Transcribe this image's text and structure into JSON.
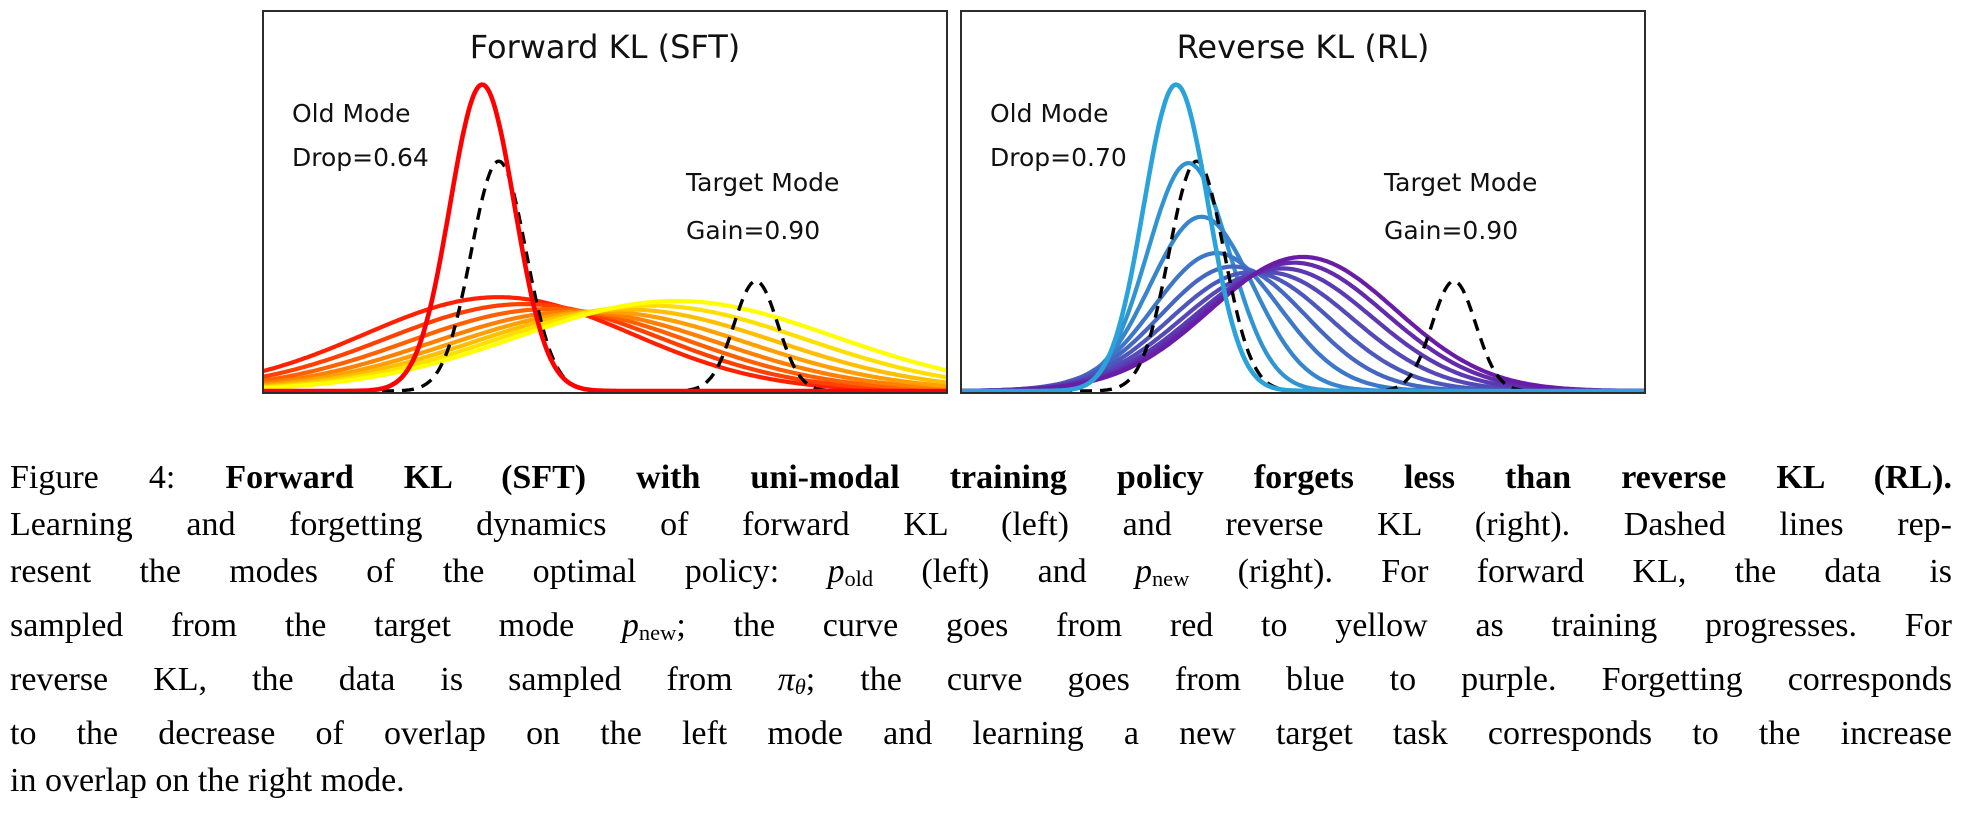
{
  "plots": [
    {
      "title": "Forward KL (SFT)",
      "old_mode_label": "Old Mode",
      "drop_label": "Drop=0.64",
      "target_mode_label": "Target Mode",
      "gain_label": "Gain=0.90"
    },
    {
      "title": "Reverse KL (RL)",
      "old_mode_label": "Old Mode",
      "drop_label": "Drop=0.70",
      "target_mode_label": "Target Mode",
      "gain_label": "Gain=0.90"
    }
  ],
  "chart_data": [
    {
      "type": "line",
      "title": "Forward KL (SFT)",
      "x_range": [
        0,
        1
      ],
      "y_range": [
        0,
        1
      ],
      "axes_visible": false,
      "grid": false,
      "legend": "none",
      "annotations": [
        "Old Mode Drop=0.64",
        "Target Mode Gain=0.90"
      ],
      "dashed_reference": {
        "label": "modes of optimal policy: p_old (left bump), p_new (right bump)",
        "line_style": "dashed black",
        "components": [
          {
            "mu": 0.345,
            "sigma": 0.04,
            "height": 0.6
          },
          {
            "mu": 0.72,
            "sigma": 0.032,
            "height": 0.287
          }
        ]
      },
      "series_note": "policy density over SFT training, early (red) to late (yellow); gaussian bumps in axis fractions",
      "series": [
        {
          "name": "step 0 (initial)",
          "color": "#FF0000",
          "mu": 0.321,
          "sigma": 0.047,
          "height": 0.8
        },
        {
          "name": "step 1",
          "color": "#FF2000",
          "mu": 0.345,
          "sigma": 0.195,
          "height": 0.245
        },
        {
          "name": "step 2",
          "color": "#FF4000",
          "mu": 0.382,
          "sigma": 0.2,
          "height": 0.227
        },
        {
          "name": "step 3",
          "color": "#FF6000",
          "mu": 0.419,
          "sigma": 0.205,
          "height": 0.214
        },
        {
          "name": "step 4",
          "color": "#FF8000",
          "mu": 0.456,
          "sigma": 0.21,
          "height": 0.207
        },
        {
          "name": "step 5",
          "color": "#FF9F00",
          "mu": 0.493,
          "sigma": 0.215,
          "height": 0.207
        },
        {
          "name": "step 6",
          "color": "#FFBF00",
          "mu": 0.53,
          "sigma": 0.22,
          "height": 0.213
        },
        {
          "name": "step 7",
          "color": "#FFDF00",
          "mu": 0.567,
          "sigma": 0.225,
          "height": 0.223
        },
        {
          "name": "step 8 (final)",
          "color": "#FFFF00",
          "mu": 0.604,
          "sigma": 0.23,
          "height": 0.235
        }
      ]
    },
    {
      "type": "line",
      "title": "Reverse KL (RL)",
      "x_range": [
        0,
        1
      ],
      "y_range": [
        0,
        1
      ],
      "axes_visible": false,
      "grid": false,
      "legend": "none",
      "annotations": [
        "Old Mode Drop=0.70",
        "Target Mode Gain=0.90"
      ],
      "dashed_reference": {
        "label": "modes of optimal policy: p_old (left bump), p_new (right bump)",
        "line_style": "dashed black",
        "components": [
          {
            "mu": 0.345,
            "sigma": 0.04,
            "height": 0.6
          },
          {
            "mu": 0.72,
            "sigma": 0.032,
            "height": 0.287
          }
        ]
      },
      "series_note": "policy density over RL training, early (blue) to late (purple); gaussian bumps in axis fractions",
      "series": [
        {
          "name": "step 0 (initial)",
          "color": "#29A3D9",
          "mu": 0.315,
          "sigma": 0.047,
          "height": 0.8
        },
        {
          "name": "step 1",
          "color": "#3094D3",
          "mu": 0.333,
          "sigma": 0.06,
          "height": 0.595
        },
        {
          "name": "step 2",
          "color": "#3785CD",
          "mu": 0.352,
          "sigma": 0.075,
          "height": 0.455
        },
        {
          "name": "step 3",
          "color": "#3E76C8",
          "mu": 0.374,
          "sigma": 0.092,
          "height": 0.36
        },
        {
          "name": "step 4",
          "color": "#4567C2",
          "mu": 0.398,
          "sigma": 0.106,
          "height": 0.325
        },
        {
          "name": "step 5",
          "color": "#4D58BC",
          "mu": 0.423,
          "sigma": 0.117,
          "height": 0.31
        },
        {
          "name": "step 6",
          "color": "#5449B6",
          "mu": 0.448,
          "sigma": 0.125,
          "height": 0.31
        },
        {
          "name": "step 7",
          "color": "#5B3AB1",
          "mu": 0.47,
          "sigma": 0.13,
          "height": 0.32
        },
        {
          "name": "step 8",
          "color": "#622BAB",
          "mu": 0.487,
          "sigma": 0.133,
          "height": 0.335
        },
        {
          "name": "step 9 (final)",
          "color": "#691CA5",
          "mu": 0.5,
          "sigma": 0.135,
          "height": 0.35
        }
      ]
    }
  ],
  "caption": {
    "figure_label": "Figure 4:",
    "lines": [
      [
        {
          "t": "Figure 4: ",
          "s": "n"
        },
        {
          "t": "Forward KL (SFT) with uni-modal training policy forgets less than reverse KL (RL).",
          "s": "b"
        }
      ],
      [
        {
          "t": "Learning and forgetting dynamics of forward KL (left) and reverse KL (right). Dashed lines rep-",
          "s": "n"
        }
      ],
      [
        {
          "t": "resent the modes of the optimal policy: ",
          "s": "n"
        },
        {
          "t": "p",
          "s": "i"
        },
        {
          "t": "old",
          "s": "sub"
        },
        {
          "t": " (left) and ",
          "s": "n"
        },
        {
          "t": "p",
          "s": "i"
        },
        {
          "t": "new",
          "s": "sub"
        },
        {
          "t": " (right). For forward KL, the data is",
          "s": "n"
        }
      ],
      [
        {
          "t": "sampled from the target mode ",
          "s": "n"
        },
        {
          "t": "p",
          "s": "i"
        },
        {
          "t": "new",
          "s": "sub"
        },
        {
          "t": "; the curve goes from red to yellow as training progresses. For",
          "s": "n"
        }
      ],
      [
        {
          "t": "reverse KL, the data is sampled from ",
          "s": "n"
        },
        {
          "t": "π",
          "s": "i"
        },
        {
          "t": "θ",
          "s": "isub"
        },
        {
          "t": "; the curve goes from blue to purple. Forgetting corresponds",
          "s": "n"
        }
      ],
      [
        {
          "t": "to the decrease of overlap on the left mode and learning a new target task corresponds to the increase",
          "s": "n"
        }
      ],
      [
        {
          "t": "in overlap on the right mode.",
          "s": "n"
        }
      ]
    ]
  }
}
